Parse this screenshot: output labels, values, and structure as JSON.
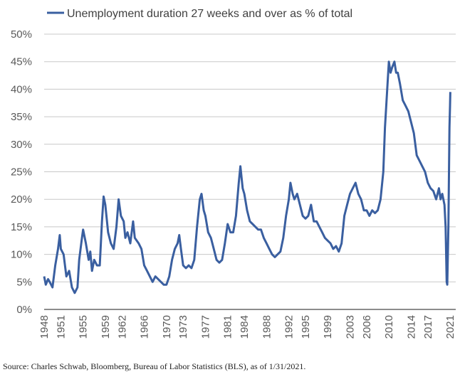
{
  "chart_data": {
    "type": "line",
    "title": "",
    "legend": [
      "Unemployment duration 27 weeks and over as % of total"
    ],
    "legend_placement": "top",
    "xlabel": "",
    "ylabel": "",
    "ylim": [
      0,
      50
    ],
    "xlim": [
      1948,
      2021
    ],
    "yticks": [
      "0%",
      "5%",
      "10%",
      "15%",
      "20%",
      "25%",
      "30%",
      "35%",
      "40%",
      "45%",
      "50%"
    ],
    "xticks": [
      "1948",
      "1951",
      "1955",
      "1959",
      "1962",
      "1966",
      "1970",
      "1973",
      "1977",
      "1981",
      "1984",
      "1988",
      "1992",
      "1995",
      "1999",
      "2003",
      "2006",
      "2010",
      "2014",
      "2017",
      "2021"
    ],
    "grid": true,
    "color": "#3A5FA0",
    "series": [
      {
        "name": "Unemployment duration 27 weeks and over as % of total",
        "points": [
          [
            1948,
            6
          ],
          [
            1948.3,
            4.5
          ],
          [
            1948.7,
            5.5
          ],
          [
            1949,
            5
          ],
          [
            1949.5,
            4
          ],
          [
            1950,
            8
          ],
          [
            1950.5,
            11
          ],
          [
            1950.8,
            13.5
          ],
          [
            1951,
            11
          ],
          [
            1951.5,
            10
          ],
          [
            1952,
            6
          ],
          [
            1952.5,
            7
          ],
          [
            1953,
            4
          ],
          [
            1953.5,
            3
          ],
          [
            1954,
            4
          ],
          [
            1954.3,
            9
          ],
          [
            1954.8,
            13
          ],
          [
            1955,
            14.5
          ],
          [
            1955.5,
            12
          ],
          [
            1956,
            9
          ],
          [
            1956.3,
            10.5
          ],
          [
            1956.6,
            7
          ],
          [
            1957,
            9
          ],
          [
            1957.5,
            8
          ],
          [
            1958,
            8
          ],
          [
            1958.4,
            16
          ],
          [
            1958.7,
            20.5
          ],
          [
            1959,
            19
          ],
          [
            1959.5,
            14
          ],
          [
            1960,
            12
          ],
          [
            1960.5,
            11
          ],
          [
            1961,
            15
          ],
          [
            1961.4,
            20
          ],
          [
            1961.8,
            17
          ],
          [
            1962.3,
            16
          ],
          [
            1962.6,
            13
          ],
          [
            1963,
            14
          ],
          [
            1963.5,
            12
          ],
          [
            1964,
            16
          ],
          [
            1964.3,
            13
          ],
          [
            1965,
            12
          ],
          [
            1965.5,
            11
          ],
          [
            1966,
            8
          ],
          [
            1966.5,
            7
          ],
          [
            1967,
            6
          ],
          [
            1967.5,
            5
          ],
          [
            1968,
            6
          ],
          [
            1968.5,
            5.5
          ],
          [
            1969,
            5
          ],
          [
            1969.5,
            4.5
          ],
          [
            1970,
            4.5
          ],
          [
            1970.5,
            6
          ],
          [
            1971,
            9
          ],
          [
            1971.5,
            11
          ],
          [
            1972,
            12
          ],
          [
            1972.3,
            13.5
          ],
          [
            1972.6,
            11
          ],
          [
            1973,
            8
          ],
          [
            1973.5,
            7.5
          ],
          [
            1974,
            8
          ],
          [
            1974.5,
            7.5
          ],
          [
            1975,
            9
          ],
          [
            1975.5,
            15
          ],
          [
            1976,
            20
          ],
          [
            1976.3,
            21
          ],
          [
            1976.7,
            18
          ],
          [
            1977,
            17
          ],
          [
            1977.5,
            14
          ],
          [
            1978,
            13
          ],
          [
            1978.5,
            11
          ],
          [
            1979,
            9
          ],
          [
            1979.5,
            8.5
          ],
          [
            1980,
            9
          ],
          [
            1980.5,
            12
          ],
          [
            1981,
            15.5
          ],
          [
            1981.5,
            14
          ],
          [
            1982,
            14
          ],
          [
            1982.5,
            17
          ],
          [
            1983,
            23
          ],
          [
            1983.3,
            26
          ],
          [
            1983.7,
            22
          ],
          [
            1984,
            21
          ],
          [
            1984.5,
            18
          ],
          [
            1985,
            16
          ],
          [
            1985.5,
            15.5
          ],
          [
            1986,
            15
          ],
          [
            1986.5,
            14.5
          ],
          [
            1987,
            14.5
          ],
          [
            1987.5,
            13
          ],
          [
            1988,
            12
          ],
          [
            1988.5,
            11
          ],
          [
            1989,
            10
          ],
          [
            1989.5,
            9.5
          ],
          [
            1990,
            10
          ],
          [
            1990.5,
            10.5
          ],
          [
            1991,
            13
          ],
          [
            1991.5,
            17
          ],
          [
            1992,
            20
          ],
          [
            1992.3,
            23
          ],
          [
            1992.7,
            21
          ],
          [
            1993,
            20
          ],
          [
            1993.5,
            21
          ],
          [
            1994,
            19
          ],
          [
            1994.5,
            17
          ],
          [
            1995,
            16.5
          ],
          [
            1995.5,
            17
          ],
          [
            1996,
            19
          ],
          [
            1996.5,
            16
          ],
          [
            1997,
            16
          ],
          [
            1997.5,
            15
          ],
          [
            1998,
            14
          ],
          [
            1998.5,
            13
          ],
          [
            1999,
            12.5
          ],
          [
            1999.5,
            12
          ],
          [
            2000,
            11
          ],
          [
            2000.5,
            11.5
          ],
          [
            2001,
            10.5
          ],
          [
            2001.5,
            12
          ],
          [
            2002,
            17
          ],
          [
            2002.5,
            19
          ],
          [
            2003,
            21
          ],
          [
            2003.5,
            22
          ],
          [
            2004,
            23
          ],
          [
            2004.5,
            21
          ],
          [
            2005,
            20
          ],
          [
            2005.5,
            18
          ],
          [
            2006,
            18
          ],
          [
            2006.5,
            17
          ],
          [
            2007,
            18
          ],
          [
            2007.5,
            17.5
          ],
          [
            2008,
            18
          ],
          [
            2008.5,
            20
          ],
          [
            2009,
            25
          ],
          [
            2009.3,
            33
          ],
          [
            2009.7,
            40
          ],
          [
            2010,
            45
          ],
          [
            2010.3,
            43
          ],
          [
            2010.6,
            44
          ],
          [
            2011,
            45
          ],
          [
            2011.3,
            43
          ],
          [
            2011.6,
            43
          ],
          [
            2012,
            41
          ],
          [
            2012.5,
            38
          ],
          [
            2013,
            37
          ],
          [
            2013.5,
            36
          ],
          [
            2014,
            34
          ],
          [
            2014.5,
            32
          ],
          [
            2015,
            28
          ],
          [
            2015.5,
            27
          ],
          [
            2016,
            26
          ],
          [
            2016.5,
            25
          ],
          [
            2017,
            23
          ],
          [
            2017.5,
            22
          ],
          [
            2018,
            21.5
          ],
          [
            2018.5,
            20
          ],
          [
            2019,
            22
          ],
          [
            2019.3,
            20
          ],
          [
            2019.6,
            21
          ],
          [
            2020,
            19
          ],
          [
            2020.2,
            15
          ],
          [
            2020.4,
            5
          ],
          [
            2020.5,
            4.5
          ],
          [
            2020.7,
            15
          ],
          [
            2020.9,
            33
          ],
          [
            2021,
            37
          ],
          [
            2021.05,
            39.5
          ]
        ]
      }
    ]
  },
  "source": "Source: Charles Schwab, Bloomberg, Bureau of Labor Statistics (BLS), as of 1/31/2021."
}
